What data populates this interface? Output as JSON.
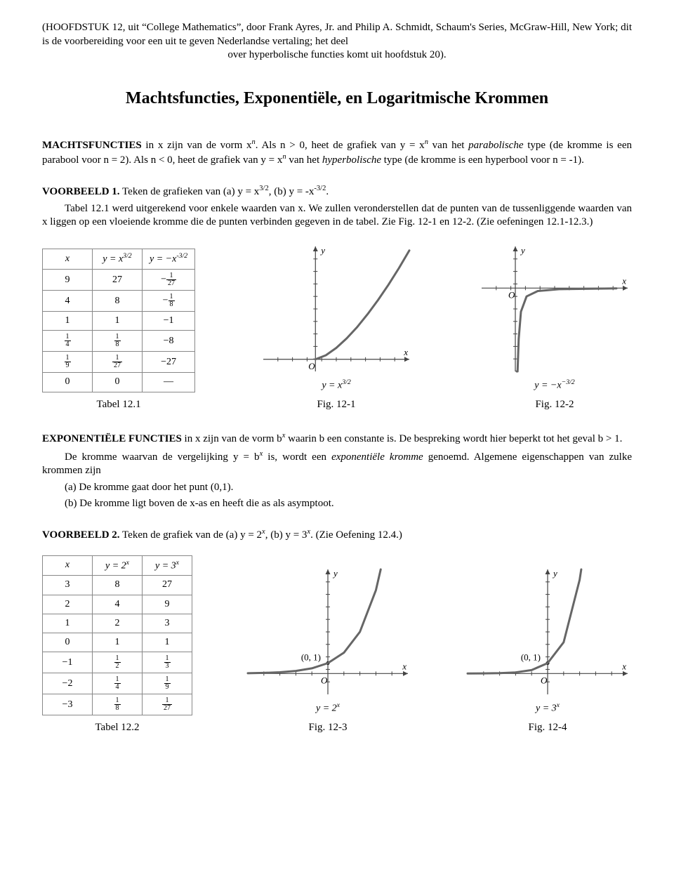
{
  "intro": {
    "line1": "(HOOFDSTUK 12, uit “College Mathematics”, door Frank Ayres, Jr. and Philip A. Schmidt, Schaum's Series, McGraw-Hill, New York; dit is de voorbereiding voor een uit te geven Nederlandse vertaling; het deel",
    "line2": "over hyperbolische functies komt uit hoofdstuk 20)."
  },
  "title": "Machtsfuncties, Exponentiële, en Logaritmische Krommen",
  "para1": {
    "lead": "MACHTSFUNCTIES",
    "rest_a": " in x zijn van de vorm x",
    "rest_b": ". Als n > 0, heet de grafiek van y = x",
    "rest_c": " van het ",
    "rest_d": "parabolische",
    "rest_e": " type (de kromme is een parabool voor n = 2). Als n < 0, heet de grafiek van y = x",
    "rest_f": " van het ",
    "rest_g": "hyperbolische",
    "rest_h": " type (de kromme is een hyperbool voor n = -1)."
  },
  "vb1": {
    "head": "VOORBEELD 1.",
    "text_a": " Teken de grafieken van (a) y = x",
    "exp_a": "3/2",
    "text_b": ", (b) y = -x",
    "exp_b": "-3/2",
    "text_c": "."
  },
  "vb1b": "Tabel 12.1 werd uitgerekend voor enkele waarden van x. We zullen veronderstellen dat de punten van de tussenliggende waarden van x liggen op een vloeiende kromme die de punten verbinden gegeven in de tabel. Zie Fig. 12-1 en 12-2. (Zie oefeningen 12.1-12.3.)",
  "table1": {
    "head": [
      "x",
      "y = x^{3/2}",
      "y = −x^{-3/2}"
    ],
    "rows": [
      [
        "9",
        "27",
        [
          "frac",
          "1",
          "27",
          "neg"
        ]
      ],
      [
        "4",
        "8",
        [
          "frac",
          "1",
          "8",
          "neg"
        ]
      ],
      [
        "1",
        "1",
        "−1"
      ],
      [
        [
          "frac",
          "1",
          "4"
        ],
        [
          "frac",
          "1",
          "8"
        ],
        "−8"
      ],
      [
        [
          "frac",
          "1",
          "9"
        ],
        [
          "frac",
          "1",
          "27"
        ],
        "−27"
      ],
      [
        "0",
        "0",
        "—"
      ]
    ],
    "caption": "Tabel 12.1"
  },
  "fig1": {
    "eq": "y = x^{3/2}",
    "caption": "Fig. 12-1",
    "chart": {
      "type": "line",
      "xlim": [
        -5,
        9
      ],
      "ylim": [
        -3,
        28
      ],
      "axis_color": "#444",
      "grid_color": "#bbb",
      "curve_color": "#666",
      "curve_width": 3,
      "bg": "#ffffff",
      "points": [
        [
          0,
          0
        ],
        [
          1,
          1
        ],
        [
          2,
          2.83
        ],
        [
          3,
          5.2
        ],
        [
          4,
          8
        ],
        [
          5,
          11.2
        ],
        [
          6,
          14.7
        ],
        [
          7,
          18.5
        ],
        [
          8,
          22.6
        ],
        [
          9,
          27
        ]
      ]
    }
  },
  "fig2": {
    "eq": "y = −x^{-3/2}",
    "caption": "Fig. 12-2",
    "chart": {
      "type": "line",
      "xlim": [
        -3,
        10
      ],
      "ylim": [
        -10,
        5
      ],
      "axis_color": "#444",
      "grid_color": "#bbb",
      "curve_color": "#666",
      "curve_width": 3,
      "bg": "#ffffff",
      "points": [
        [
          0.12,
          -24
        ],
        [
          0.2,
          -11.2
        ],
        [
          0.3,
          -6.1
        ],
        [
          0.5,
          -2.83
        ],
        [
          1,
          -1
        ],
        [
          2,
          -0.35
        ],
        [
          4,
          -0.125
        ],
        [
          9,
          -0.037
        ]
      ]
    }
  },
  "para2": {
    "lead": "EXPONENTIËLE FUNCTIES",
    "rest_a": " in x zijn van de vorm b",
    "rest_b": " waarin b een constante is. De bespreking wordt hier beperkt tot het geval b > 1.",
    "line2_a": "De kromme waarvan de vergelijking y = b",
    "line2_b": " is, wordt een ",
    "line2_c": "exponentiële kromme",
    "line2_d": " genoemd. Algemene eigenschappen van zulke krommen zijn",
    "item_a": "(a) De kromme gaat door het punt (0,1).",
    "item_b": "(b) De kromme ligt boven de x-as en heeft die as als asymptoot."
  },
  "vb2": {
    "head": "VOORBEELD 2.",
    "text_a": " Teken de grafiek van de (a) y = 2",
    "text_b": ", (b) y = 3",
    "text_c": ". (Zie Oefening 12.4.)"
  },
  "table2": {
    "head": [
      "x",
      "y = 2^{x}",
      "y = 3^{x}"
    ],
    "rows": [
      [
        "3",
        "8",
        "27"
      ],
      [
        "2",
        "4",
        "9"
      ],
      [
        "1",
        "2",
        "3"
      ],
      [
        "0",
        "1",
        "1"
      ],
      [
        "−1",
        [
          "frac",
          "1",
          "2"
        ],
        [
          "frac",
          "1",
          "3"
        ]
      ],
      [
        "−2",
        [
          "frac",
          "1",
          "4"
        ],
        [
          "frac",
          "1",
          "9"
        ]
      ],
      [
        "−3",
        [
          "frac",
          "1",
          "8"
        ],
        [
          "frac",
          "1",
          "27"
        ]
      ]
    ],
    "caption": "Tabel 12.2"
  },
  "fig3": {
    "eq": "y = 2^{x}",
    "caption": "Fig. 12-3",
    "label01": "(0, 1)",
    "chart": {
      "type": "line",
      "xlim": [
        -5,
        5
      ],
      "ylim": [
        -2,
        10
      ],
      "axis_color": "#444",
      "grid_color": "#bbb",
      "curve_color": "#666",
      "curve_width": 3,
      "bg": "#ffffff",
      "points": [
        [
          -5,
          0.03
        ],
        [
          -4,
          0.0625
        ],
        [
          -3,
          0.125
        ],
        [
          -2,
          0.25
        ],
        [
          -1,
          0.5
        ],
        [
          0,
          1
        ],
        [
          1,
          2
        ],
        [
          2,
          4
        ],
        [
          3,
          8
        ],
        [
          3.3,
          10
        ]
      ]
    }
  },
  "fig4": {
    "eq": "y = 3^{x}",
    "caption": "Fig. 12-4",
    "label01": "(0, 1)",
    "chart": {
      "type": "line",
      "xlim": [
        -5,
        5
      ],
      "ylim": [
        -2,
        10
      ],
      "axis_color": "#444",
      "grid_color": "#bbb",
      "curve_color": "#666",
      "curve_width": 3,
      "bg": "#ffffff",
      "points": [
        [
          -5,
          0.004
        ],
        [
          -4,
          0.012
        ],
        [
          -3,
          0.037
        ],
        [
          -2,
          0.111
        ],
        [
          -1,
          0.333
        ],
        [
          0,
          1
        ],
        [
          1,
          3
        ],
        [
          2,
          9
        ],
        [
          2.1,
          10
        ]
      ]
    }
  }
}
